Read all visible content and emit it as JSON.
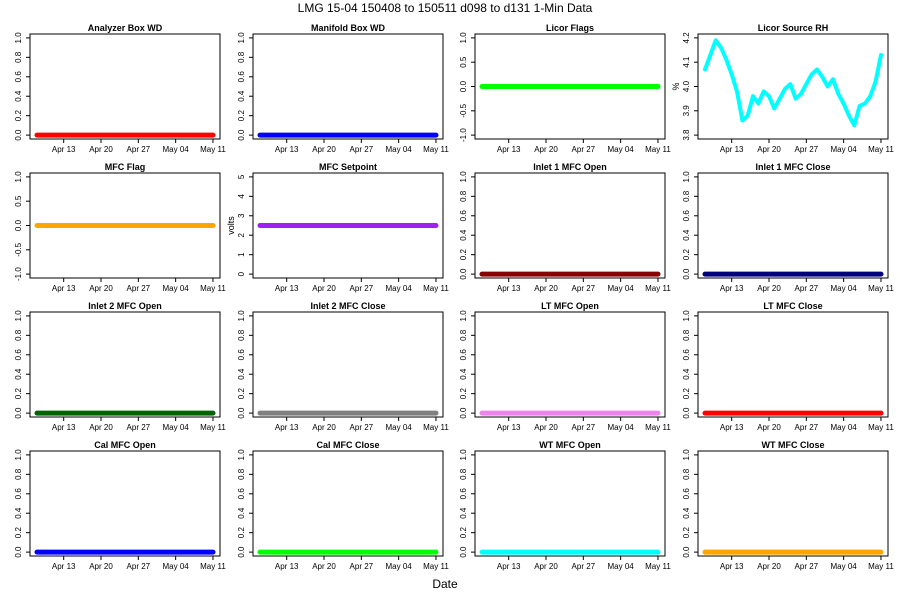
{
  "figure": {
    "title": "LMG   15-04     150408 to 150511     d098 to d131   1-Min Data",
    "xlabel": "Date"
  },
  "chart_data": [
    {
      "type": "line",
      "title": "Analyzer Box WD",
      "ylabel": "",
      "ylim": [
        0,
        1
      ],
      "yticks": [
        "0.0",
        "0.2",
        "0.4",
        "0.6",
        "0.8",
        "1.0"
      ],
      "xticks": [
        "Apr 13",
        "Apr 20",
        "Apr 27",
        "May 04",
        "May 11"
      ],
      "xrange": [
        "2015-04-08",
        "2015-05-11"
      ],
      "color": "#ff0000",
      "series": [
        {
          "x": [
            "2015-04-08",
            "2015-05-11"
          ],
          "y": [
            0,
            0
          ]
        }
      ]
    },
    {
      "type": "line",
      "title": "Manifold Box WD",
      "ylabel": "",
      "ylim": [
        0,
        1
      ],
      "yticks": [
        "0.0",
        "0.2",
        "0.4",
        "0.6",
        "0.8",
        "1.0"
      ],
      "xticks": [
        "Apr 13",
        "Apr 20",
        "Apr 27",
        "May 04",
        "May 11"
      ],
      "xrange": [
        "2015-04-08",
        "2015-05-11"
      ],
      "color": "#0000ff",
      "series": [
        {
          "x": [
            "2015-04-08",
            "2015-05-11"
          ],
          "y": [
            0,
            0
          ]
        }
      ]
    },
    {
      "type": "line",
      "title": "Licor Flags",
      "ylabel": "",
      "ylim": [
        -1,
        1
      ],
      "yticks": [
        "-1.0",
        "-0.5",
        "0.0",
        "0.5",
        "1.0"
      ],
      "xticks": [
        "Apr 13",
        "Apr 20",
        "Apr 27",
        "May 04",
        "May 11"
      ],
      "xrange": [
        "2015-04-08",
        "2015-05-11"
      ],
      "color": "#00ff00",
      "series": [
        {
          "x": [
            "2015-04-08",
            "2015-05-11"
          ],
          "y": [
            0,
            0
          ]
        }
      ]
    },
    {
      "type": "line",
      "title": "Licor Source RH",
      "ylabel": "%",
      "ylim": [
        3.8,
        4.2
      ],
      "yticks": [
        "3.8",
        "3.9",
        "4.0",
        "4.1",
        "4.2"
      ],
      "xticks": [
        "Apr 13",
        "Apr 20",
        "Apr 27",
        "May 04",
        "May 11"
      ],
      "xrange": [
        "2015-04-08",
        "2015-05-11"
      ],
      "color": "#00ffff",
      "series": [
        {
          "x": [
            "2015-04-08",
            "2015-04-09",
            "2015-04-10",
            "2015-04-11",
            "2015-04-12",
            "2015-04-13",
            "2015-04-14",
            "2015-04-15",
            "2015-04-16",
            "2015-04-17",
            "2015-04-18",
            "2015-04-19",
            "2015-04-20",
            "2015-04-21",
            "2015-04-22",
            "2015-04-23",
            "2015-04-24",
            "2015-04-25",
            "2015-04-26",
            "2015-04-27",
            "2015-04-28",
            "2015-04-29",
            "2015-04-30",
            "2015-05-01",
            "2015-05-02",
            "2015-05-03",
            "2015-05-04",
            "2015-05-05",
            "2015-05-06",
            "2015-05-07",
            "2015-05-08",
            "2015-05-09",
            "2015-05-10",
            "2015-05-11"
          ],
          "y": [
            4.07,
            4.13,
            4.19,
            4.16,
            4.11,
            4.05,
            3.98,
            3.86,
            3.88,
            3.96,
            3.93,
            3.98,
            3.96,
            3.91,
            3.95,
            3.99,
            4.01,
            3.95,
            3.97,
            4.01,
            4.05,
            4.07,
            4.04,
            4.0,
            4.03,
            3.97,
            3.93,
            3.88,
            3.84,
            3.92,
            3.93,
            3.96,
            4.02,
            4.13
          ]
        }
      ]
    },
    {
      "type": "line",
      "title": "MFC Flag",
      "ylabel": "",
      "ylim": [
        -1,
        1
      ],
      "yticks": [
        "-1.0",
        "-0.5",
        "0.0",
        "0.5",
        "1.0"
      ],
      "xticks": [
        "Apr 13",
        "Apr 20",
        "Apr 27",
        "May 04",
        "May 11"
      ],
      "xrange": [
        "2015-04-08",
        "2015-05-11"
      ],
      "color": "#ffa500",
      "series": [
        {
          "x": [
            "2015-04-08",
            "2015-05-11"
          ],
          "y": [
            0,
            0
          ]
        }
      ]
    },
    {
      "type": "line",
      "title": "MFC Setpoint",
      "ylabel": "volts",
      "ylim": [
        0,
        5
      ],
      "yticks": [
        "0",
        "1",
        "2",
        "3",
        "4",
        "5"
      ],
      "xticks": [
        "Apr 13",
        "Apr 20",
        "Apr 27",
        "May 04",
        "May 11"
      ],
      "xrange": [
        "2015-04-08",
        "2015-05-11"
      ],
      "color": "#a020f0",
      "series": [
        {
          "x": [
            "2015-04-08",
            "2015-05-11"
          ],
          "y": [
            2.5,
            2.5
          ]
        }
      ]
    },
    {
      "type": "line",
      "title": "Inlet 1 MFC Open",
      "ylabel": "",
      "ylim": [
        0,
        1
      ],
      "yticks": [
        "0.0",
        "0.2",
        "0.4",
        "0.6",
        "0.8",
        "1.0"
      ],
      "xticks": [
        "Apr 13",
        "Apr 20",
        "Apr 27",
        "May 04",
        "May 11"
      ],
      "xrange": [
        "2015-04-08",
        "2015-05-11"
      ],
      "color": "#8b0000",
      "series": [
        {
          "x": [
            "2015-04-08",
            "2015-05-11"
          ],
          "y": [
            0,
            0
          ]
        }
      ]
    },
    {
      "type": "line",
      "title": "Inlet 1 MFC Close",
      "ylabel": "",
      "ylim": [
        0,
        1
      ],
      "yticks": [
        "0.0",
        "0.2",
        "0.4",
        "0.6",
        "0.8",
        "1.0"
      ],
      "xticks": [
        "Apr 13",
        "Apr 20",
        "Apr 27",
        "May 04",
        "May 11"
      ],
      "xrange": [
        "2015-04-08",
        "2015-05-11"
      ],
      "color": "#000080",
      "series": [
        {
          "x": [
            "2015-04-08",
            "2015-05-11"
          ],
          "y": [
            0,
            0
          ]
        }
      ]
    },
    {
      "type": "line",
      "title": "Inlet 2 MFC Open",
      "ylabel": "",
      "ylim": [
        0,
        1
      ],
      "yticks": [
        "0.0",
        "0.2",
        "0.4",
        "0.6",
        "0.8",
        "1.0"
      ],
      "xticks": [
        "Apr 13",
        "Apr 20",
        "Apr 27",
        "May 04",
        "May 11"
      ],
      "xrange": [
        "2015-04-08",
        "2015-05-11"
      ],
      "color": "#006400",
      "series": [
        {
          "x": [
            "2015-04-08",
            "2015-05-11"
          ],
          "y": [
            0,
            0
          ]
        }
      ]
    },
    {
      "type": "line",
      "title": "Inlet 2 MFC Close",
      "ylabel": "",
      "ylim": [
        0,
        1
      ],
      "yticks": [
        "0.0",
        "0.2",
        "0.4",
        "0.6",
        "0.8",
        "1.0"
      ],
      "xticks": [
        "Apr 13",
        "Apr 20",
        "Apr 27",
        "May 04",
        "May 11"
      ],
      "xrange": [
        "2015-04-08",
        "2015-05-11"
      ],
      "color": "#808080",
      "series": [
        {
          "x": [
            "2015-04-08",
            "2015-05-11"
          ],
          "y": [
            0,
            0
          ]
        }
      ]
    },
    {
      "type": "line",
      "title": "LT MFC Open",
      "ylabel": "",
      "ylim": [
        0,
        1
      ],
      "yticks": [
        "0.0",
        "0.2",
        "0.4",
        "0.6",
        "0.8",
        "1.0"
      ],
      "xticks": [
        "Apr 13",
        "Apr 20",
        "Apr 27",
        "May 04",
        "May 11"
      ],
      "xrange": [
        "2015-04-08",
        "2015-05-11"
      ],
      "color": "#ee82ee",
      "series": [
        {
          "x": [
            "2015-04-08",
            "2015-05-11"
          ],
          "y": [
            0,
            0
          ]
        }
      ]
    },
    {
      "type": "line",
      "title": "LT MFC Close",
      "ylabel": "",
      "ylim": [
        0,
        1
      ],
      "yticks": [
        "0.0",
        "0.2",
        "0.4",
        "0.6",
        "0.8",
        "1.0"
      ],
      "xticks": [
        "Apr 13",
        "Apr 20",
        "Apr 27",
        "May 04",
        "May 11"
      ],
      "xrange": [
        "2015-04-08",
        "2015-05-11"
      ],
      "color": "#ff0000",
      "series": [
        {
          "x": [
            "2015-04-08",
            "2015-05-11"
          ],
          "y": [
            0,
            0
          ]
        }
      ]
    },
    {
      "type": "line",
      "title": "Cal MFC Open",
      "ylabel": "",
      "ylim": [
        0,
        1
      ],
      "yticks": [
        "0.0",
        "0.2",
        "0.4",
        "0.6",
        "0.8",
        "1.0"
      ],
      "xticks": [
        "Apr 13",
        "Apr 20",
        "Apr 27",
        "May 04",
        "May 11"
      ],
      "xrange": [
        "2015-04-08",
        "2015-05-11"
      ],
      "color": "#0000ff",
      "series": [
        {
          "x": [
            "2015-04-08",
            "2015-05-11"
          ],
          "y": [
            0,
            0
          ]
        }
      ]
    },
    {
      "type": "line",
      "title": "Cal MFC Close",
      "ylabel": "",
      "ylim": [
        0,
        1
      ],
      "yticks": [
        "0.0",
        "0.2",
        "0.4",
        "0.6",
        "0.8",
        "1.0"
      ],
      "xticks": [
        "Apr 13",
        "Apr 20",
        "Apr 27",
        "May 04",
        "May 11"
      ],
      "xrange": [
        "2015-04-08",
        "2015-05-11"
      ],
      "color": "#00ff00",
      "series": [
        {
          "x": [
            "2015-04-08",
            "2015-05-11"
          ],
          "y": [
            0,
            0
          ]
        }
      ]
    },
    {
      "type": "line",
      "title": "WT MFC Open",
      "ylabel": "",
      "ylim": [
        0,
        1
      ],
      "yticks": [
        "0.0",
        "0.2",
        "0.4",
        "0.6",
        "0.8",
        "1.0"
      ],
      "xticks": [
        "Apr 13",
        "Apr 20",
        "Apr 27",
        "May 04",
        "May 11"
      ],
      "xrange": [
        "2015-04-08",
        "2015-05-11"
      ],
      "color": "#00ffff",
      "series": [
        {
          "x": [
            "2015-04-08",
            "2015-05-11"
          ],
          "y": [
            0,
            0
          ]
        }
      ]
    },
    {
      "type": "line",
      "title": "WT MFC Close",
      "ylabel": "",
      "ylim": [
        0,
        1
      ],
      "yticks": [
        "0.0",
        "0.2",
        "0.4",
        "0.6",
        "0.8",
        "1.0"
      ],
      "xticks": [
        "Apr 13",
        "Apr 20",
        "Apr 27",
        "May 04",
        "May 11"
      ],
      "xrange": [
        "2015-04-08",
        "2015-05-11"
      ],
      "color": "#ffa500",
      "series": [
        {
          "x": [
            "2015-04-08",
            "2015-05-11"
          ],
          "y": [
            0,
            0
          ]
        }
      ]
    }
  ]
}
